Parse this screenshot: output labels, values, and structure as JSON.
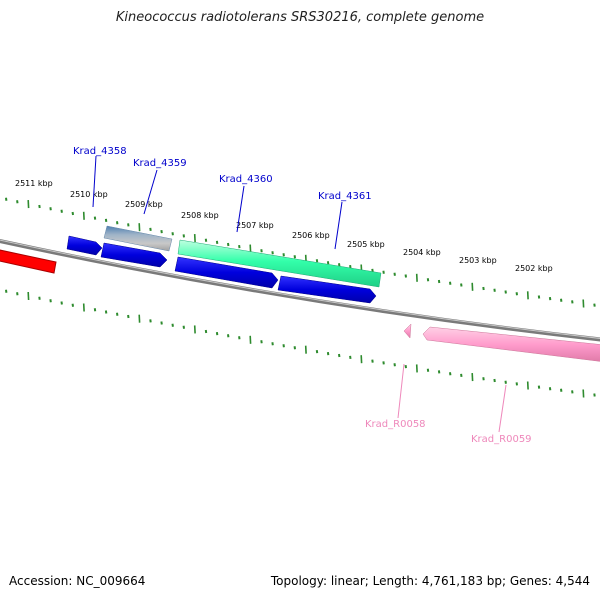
{
  "title": "Kineococcus radiotolerans SRS30216, complete genome",
  "footer": {
    "accession": "Accession: NC_009664",
    "summary": "Topology: linear; Length: 4,761,183 bp; Genes: 4,544"
  },
  "scale_labels": [
    "2511 kbp",
    "2510 kbp",
    "2509 kbp",
    "2508 kbp",
    "2507 kbp",
    "2506 kbp",
    "2505 kbp",
    "2504 kbp",
    "2503 kbp",
    "2502 kbp"
  ],
  "gene_labels": {
    "krad_4358": "Krad_4358",
    "krad_4359": "Krad_4359",
    "krad_4360": "Krad_4360",
    "krad_4361": "Krad_4361",
    "krad_r0058": "Krad_R0058",
    "krad_r0059": "Krad_R0059"
  },
  "colors": {
    "cds": "#0000dd",
    "cds_label": "#0000cc",
    "rna": "#ff9ccc",
    "rna_label": "#ee88bb",
    "highlight": "#33ffaa",
    "gene_gray": "#8899aa",
    "red_feature": "#ff0000",
    "backbone": "#808080",
    "tick": "#2e8b2e"
  }
}
